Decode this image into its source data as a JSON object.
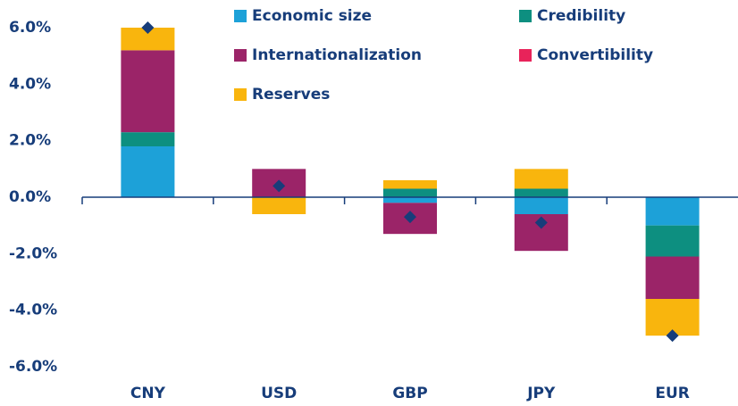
{
  "chart_data": {
    "type": "stacked_bar",
    "categories": [
      "CNY",
      "USD",
      "GBP",
      "JPY",
      "EUR"
    ],
    "series": [
      {
        "name": "Economic size",
        "color": "#1da1d8",
        "values": [
          1.8,
          0,
          -0.2,
          -0.6,
          -1.0
        ]
      },
      {
        "name": "Credibility",
        "color": "#0d8f80",
        "values": [
          0.5,
          0,
          0.3,
          0.3,
          -1.1
        ]
      },
      {
        "name": "Internationalization",
        "color": "#9b2468",
        "values": [
          2.9,
          1.0,
          -1.1,
          -1.3,
          -1.5
        ]
      },
      {
        "name": "Convertibility",
        "color": "#e8235a",
        "values": [
          0,
          0,
          0,
          0,
          0
        ]
      },
      {
        "name": "Reserves",
        "color": "#f9b50d",
        "values": [
          0.8,
          -0.6,
          0.3,
          0.7,
          -1.3
        ]
      }
    ],
    "totals": {
      "color": "#173d7a",
      "values": [
        6.0,
        0.4,
        -0.7,
        -0.9,
        -4.9
      ]
    },
    "ylim": [
      -6.6,
      6.6
    ],
    "yticks": [
      {
        "value": -6,
        "label": "-6.0%"
      },
      {
        "value": -4,
        "label": "-4.0%"
      },
      {
        "value": -2,
        "label": "-2.0%"
      },
      {
        "value": 0,
        "label": "0.0%"
      },
      {
        "value": 2,
        "label": "2.0%"
      },
      {
        "value": 4,
        "label": "4.0%"
      },
      {
        "value": 6,
        "label": "6.0%"
      }
    ]
  }
}
